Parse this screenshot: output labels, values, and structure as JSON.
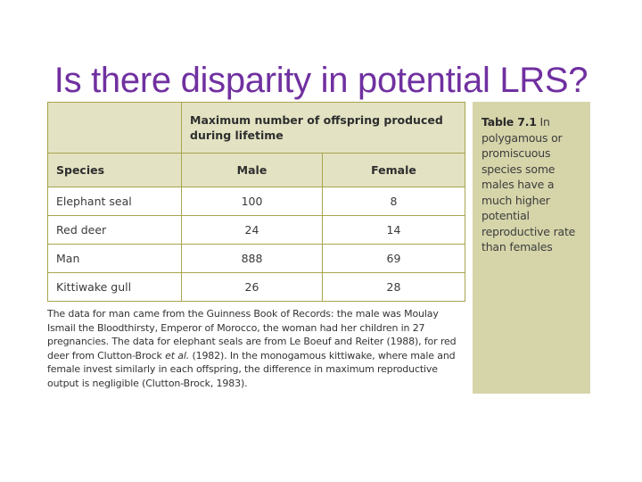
{
  "slide": {
    "title": "Is there disparity in potential LRS?",
    "title_color": "#7030a0"
  },
  "table": {
    "group_header": "Maximum number of offspring produced during lifetime",
    "columns": [
      "Species",
      "Male",
      "Female"
    ],
    "rows": [
      {
        "species": "Elephant seal",
        "male": "100",
        "female": "8"
      },
      {
        "species": "Red deer",
        "male": "24",
        "female": "14"
      },
      {
        "species": "Man",
        "male": "888",
        "female": "69"
      },
      {
        "species": "Kittiwake gull",
        "male": "26",
        "female": "28"
      }
    ],
    "header_bg": "#e3e2c3",
    "border_color": "#a8a54e"
  },
  "footnote": {
    "part1": "The data for man came from the Guinness Book of Records: the male was Moulay Ismail the Bloodthirsty, Emperor of Morocco, the woman had her children in 27 pregnancies. The data for elephant seals are from Le Boeuf and Reiter (1988), for red deer from Clutton-Brock ",
    "italic": "et al.",
    "part2": " (1982). In the monogamous kittiwake, where male and female invest similarly in each offspring, the difference in maximum reproductive output is negligible (Clutton-Brock, 1983)."
  },
  "caption": {
    "label": "Table 7.1",
    "text": " In polygamous or promiscuous species some males have a much higher potential reproductive rate than females",
    "bg": "#d6d5aa"
  }
}
